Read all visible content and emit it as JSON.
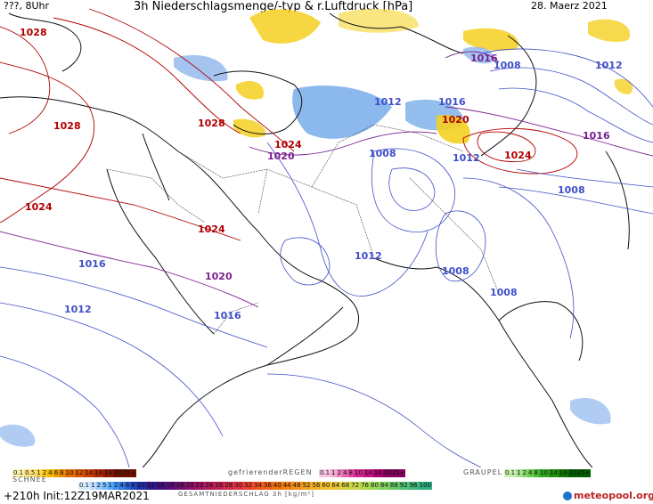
{
  "header": {
    "left": "???, 8Uhr",
    "title": "3h Niederschlagsmenge/-typ & r.Luftdruck [hPa]",
    "date": "28. Maerz 2021"
  },
  "isobar_labels": [
    {
      "text": "1028",
      "color": "#b00000"
    },
    {
      "text": "1028",
      "color": "#b00000"
    },
    {
      "text": "1028",
      "color": "#b00000"
    },
    {
      "text": "1024",
      "color": "#b00000"
    },
    {
      "text": "1024",
      "color": "#b00000"
    },
    {
      "text": "1024",
      "color": "#b00000"
    },
    {
      "text": "1024",
      "color": "#b00000"
    },
    {
      "text": "1020",
      "color": "#7a2090"
    },
    {
      "text": "1020",
      "color": "#7a2090"
    },
    {
      "text": "1020",
      "color": "#b00000"
    },
    {
      "text": "1016",
      "color": "#3f4fc8"
    },
    {
      "text": "1016",
      "color": "#3f4fc8"
    },
    {
      "text": "1016",
      "color": "#3f4fc8"
    },
    {
      "text": "1016",
      "color": "#7a2090"
    },
    {
      "text": "1016",
      "color": "#7a2090"
    },
    {
      "text": "1012",
      "color": "#3f4fc8"
    },
    {
      "text": "1012",
      "color": "#3f4fc8"
    },
    {
      "text": "1012",
      "color": "#3f4fc8"
    },
    {
      "text": "1012",
      "color": "#3f4fc8"
    },
    {
      "text": "1012",
      "color": "#3f4fc8"
    },
    {
      "text": "1008",
      "color": "#3f4fc8"
    },
    {
      "text": "1008",
      "color": "#3f4fc8"
    },
    {
      "text": "1008",
      "color": "#3f4fc8"
    },
    {
      "text": "1008",
      "color": "#3f4fc8"
    },
    {
      "text": "1008",
      "color": "#3f4fc8"
    }
  ],
  "legend": {
    "rain_values": [
      "0.1",
      "0.5",
      "1",
      "2",
      "4",
      "6",
      "8",
      "10",
      "12",
      "14",
      "16",
      "18",
      "2025+"
    ],
    "freezing_rain_title": "gefrierenderREGEN",
    "freezing_rain_values": [
      "0.1",
      "1",
      "2",
      "4",
      "8",
      "10",
      "14",
      "16",
      "2025+"
    ],
    "graupel_title": "GRAUPEL",
    "graupel_values": [
      "0.1",
      "1",
      "2",
      "4",
      "8",
      "10",
      "14",
      "16",
      "2025+"
    ],
    "snow_title": "SCHNEE",
    "snow_values": [
      "0.1",
      "1",
      "2",
      "5",
      "1",
      "2",
      "4",
      "6",
      "8",
      "10",
      "12",
      "14",
      "16",
      "18",
      "20",
      "22",
      "24",
      "26",
      "28",
      "30",
      "32",
      "34",
      "36",
      "40",
      "44",
      "48",
      "52",
      "56",
      "60",
      "64",
      "68",
      "72",
      "76",
      "80",
      "84",
      "88",
      "92",
      "96",
      "100"
    ],
    "total_title": "GESAMTNIEDERSCHLAG 3h [kg/m²]"
  },
  "footer": {
    "run": "+210h Init:12Z19MAR2021",
    "brand": "meteopool.org"
  },
  "colors": {
    "high_isobar": "#b00000",
    "mid_isobar": "#7a2090",
    "low_isobar": "#3f4fc8",
    "rain": "#f5d020",
    "snow": "#6fa8e8",
    "graupel": "#7fc86a"
  }
}
